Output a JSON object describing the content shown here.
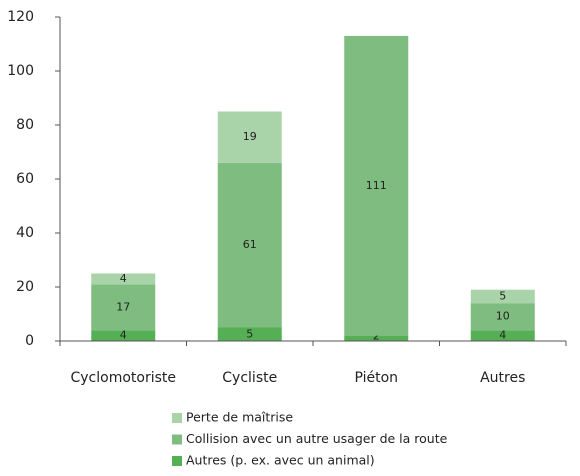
{
  "chart_data": {
    "type": "bar",
    "stacked": true,
    "categories": [
      "Cyclomotoriste",
      "Cycliste",
      "Piéton",
      "Autres"
    ],
    "series": [
      {
        "name": "Autres (p. ex. avec un animal)",
        "color": "#55b055",
        "values": [
          4,
          5,
          2,
          4
        ]
      },
      {
        "name": "Collision avec un autre usager de la route",
        "color": "#7fbc7f",
        "values": [
          17,
          61,
          111,
          10
        ]
      },
      {
        "name": "Perte de maîtrise",
        "color": "#a9d3a9",
        "values": [
          4,
          19,
          null,
          5
        ]
      }
    ],
    "ylim": [
      0,
      120
    ],
    "yticks": [
      0,
      20,
      40,
      60,
      80,
      100,
      120
    ],
    "grid": false,
    "legend": "bottom"
  }
}
